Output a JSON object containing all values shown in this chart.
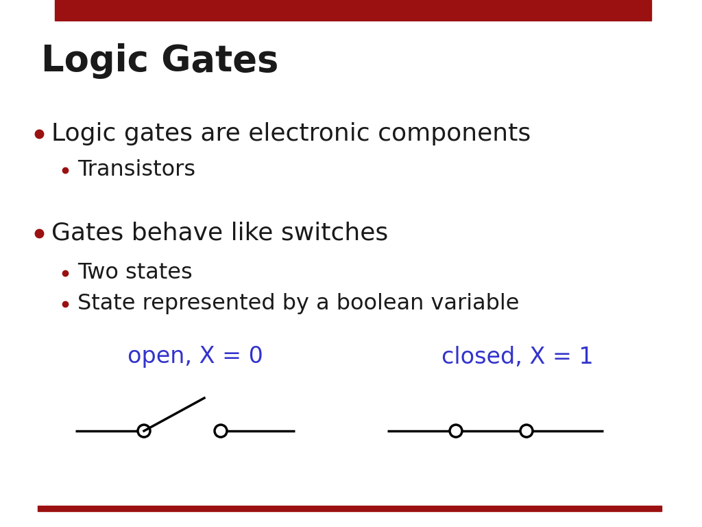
{
  "title": "Logic Gates",
  "title_color": "#1a1a1a",
  "title_fontsize": 38,
  "top_bar_color": "#9b1010",
  "bottom_bar_color": "#9b1010",
  "background_color": "#ffffff",
  "bullet_color": "#9b1010",
  "text_color": "#1a1a1a",
  "sub_bullet_color": "#9b1010",
  "sub_text_color": "#1a1a1a",
  "label_color": "#3333cc",
  "bullet_fontsize": 26,
  "sub_fontsize": 23,
  "bullets": [
    {
      "text": "Logic gates are electronic components",
      "sub": [
        "Transistors"
      ]
    },
    {
      "text": "Gates behave like switches",
      "sub": [
        "Two states",
        "State represented by a boolean variable"
      ]
    }
  ],
  "open_label": "open, X = 0",
  "closed_label": "closed, X = 1",
  "label_fontsize": 24
}
